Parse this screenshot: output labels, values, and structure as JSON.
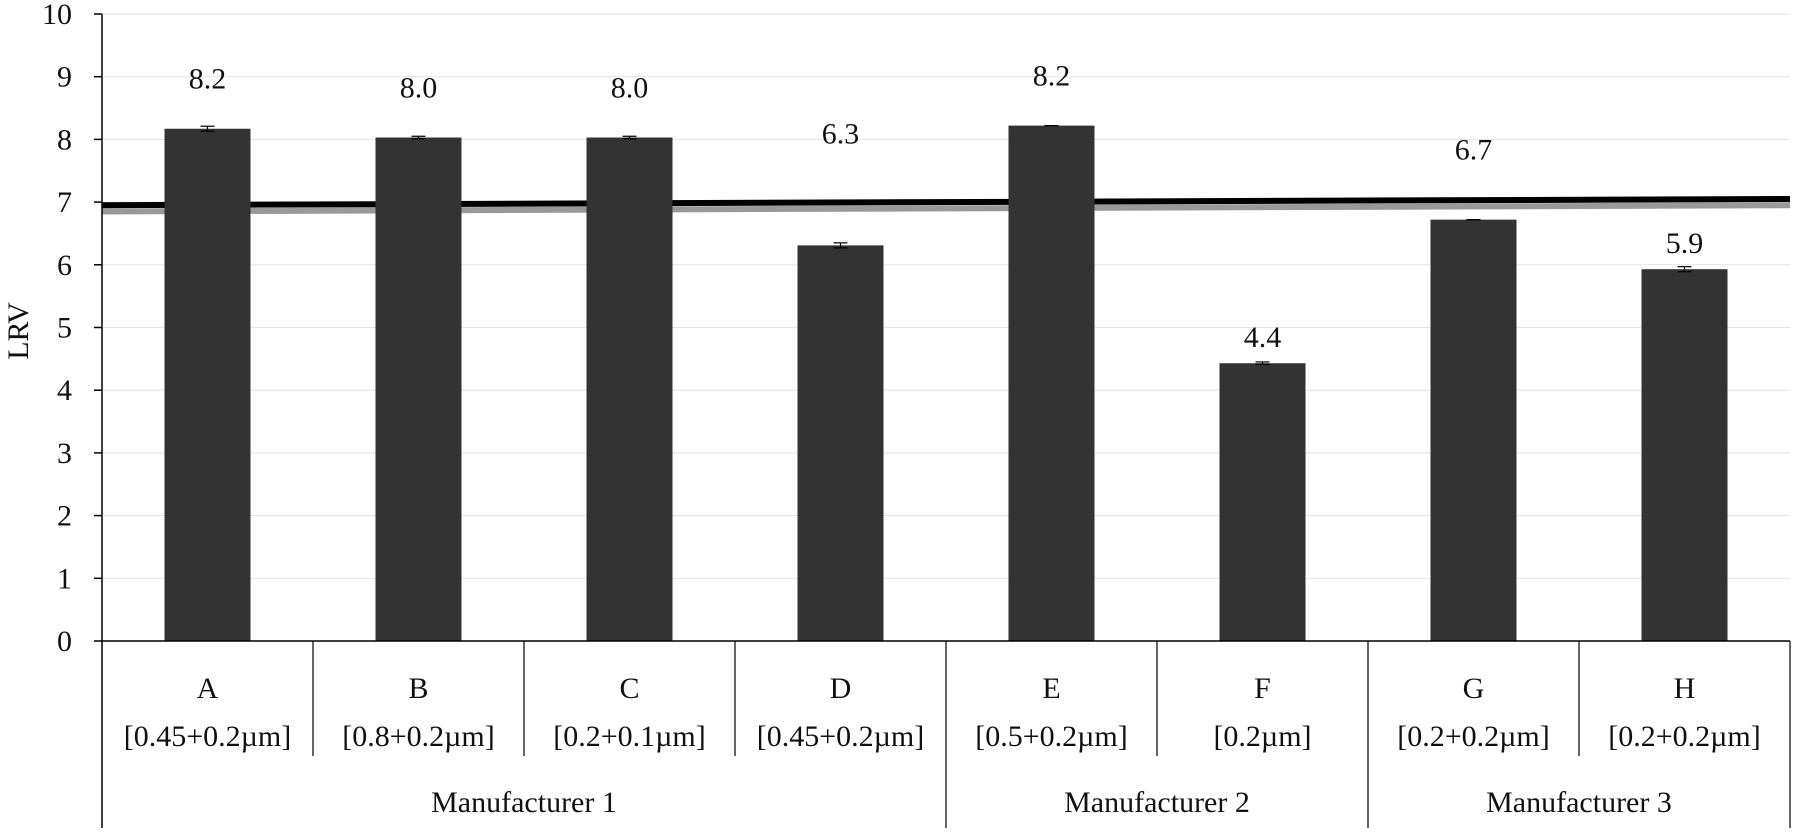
{
  "chart_data": {
    "type": "bar",
    "title": "",
    "xlabel": "",
    "ylabel": "LRV",
    "ylim": [
      0,
      10
    ],
    "yticks": [
      0,
      1,
      2,
      3,
      4,
      5,
      6,
      7,
      8,
      9,
      10
    ],
    "grid": true,
    "categories": [
      "A",
      "B",
      "C",
      "D",
      "E",
      "F",
      "G",
      "H"
    ],
    "subcategories": [
      "[0.45+0.2µm]",
      "[0.8+0.2µm]",
      "[0.2+0.1µm]",
      "[0.45+0.2µm]",
      "[0.5+0.2µm]",
      "[0.2µm]",
      "[0.2+0.2µm]",
      "[0.2+0.2µm]"
    ],
    "groups": [
      {
        "label": "Manufacturer 1",
        "categories": [
          "A",
          "B",
          "C",
          "D"
        ]
      },
      {
        "label": "Manufacturer 2",
        "categories": [
          "E",
          "F"
        ]
      },
      {
        "label": "Manufacturer 3",
        "categories": [
          "G",
          "H"
        ]
      }
    ],
    "values": [
      8.17,
      8.03,
      8.03,
      6.31,
      8.22,
      4.43,
      6.72,
      5.93
    ],
    "error": [
      0.04,
      0.02,
      0.02,
      0.04,
      0.0,
      0.02,
      0.0,
      0.04
    ],
    "data_labels": [
      "8.2",
      "8.0",
      "8.0",
      "6.3",
      "8.2",
      "4.4",
      "6.7",
      "5.9"
    ],
    "bar_color": "#333333",
    "reference_lines": [
      {
        "y_start": 6.95,
        "y_end": 7.05,
        "color": "#000000"
      },
      {
        "y_start": 6.85,
        "y_end": 6.95,
        "color": "#999999"
      }
    ]
  }
}
